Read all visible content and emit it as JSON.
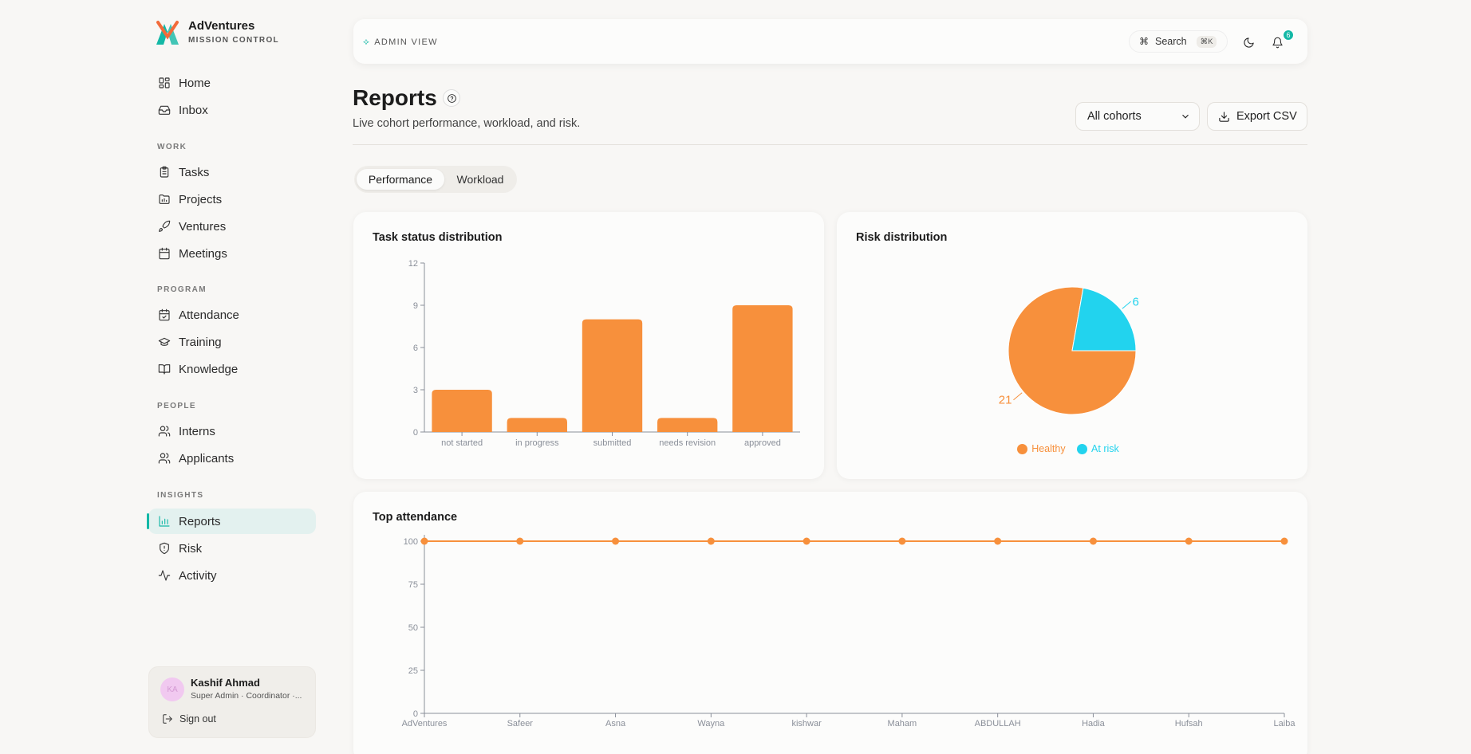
{
  "brand": {
    "name": "AdVentures",
    "subtitle": "MISSION CONTROL"
  },
  "sidebar": {
    "items_top": [
      {
        "label": "Home",
        "icon": "grid-icon"
      },
      {
        "label": "Inbox",
        "icon": "inbox-icon"
      }
    ],
    "sections": [
      {
        "label": "WORK",
        "items": [
          {
            "label": "Tasks",
            "icon": "clipboard-icon"
          },
          {
            "label": "Projects",
            "icon": "folder-icon"
          },
          {
            "label": "Ventures",
            "icon": "rocket-icon"
          },
          {
            "label": "Meetings",
            "icon": "calendar-icon"
          }
        ]
      },
      {
        "label": "PROGRAM",
        "items": [
          {
            "label": "Attendance",
            "icon": "calendar-check-icon"
          },
          {
            "label": "Training",
            "icon": "graduation-cap-icon"
          },
          {
            "label": "Knowledge",
            "icon": "book-icon"
          }
        ]
      },
      {
        "label": "PEOPLE",
        "items": [
          {
            "label": "Interns",
            "icon": "users-icon"
          },
          {
            "label": "Applicants",
            "icon": "users-icon"
          }
        ]
      },
      {
        "label": "INSIGHTS",
        "items": [
          {
            "label": "Reports",
            "icon": "bar-chart-icon",
            "active": true
          },
          {
            "label": "Risk",
            "icon": "shield-icon"
          },
          {
            "label": "Activity",
            "icon": "activity-icon"
          }
        ]
      }
    ]
  },
  "user": {
    "initials": "KA",
    "name": "Kashif Ahmad",
    "role": "Super Admin · Coordinator ·...",
    "signout": "Sign out"
  },
  "topbar": {
    "mode": "ADMIN VIEW",
    "search": "Search",
    "shortcut": "⌘K",
    "notifications": "6"
  },
  "header": {
    "title": "Reports",
    "subtitle": "Live cohort performance, workload, and risk.",
    "cohort": "All cohorts",
    "export": "Export CSV"
  },
  "tabs": [
    {
      "label": "Performance",
      "active": true
    },
    {
      "label": "Workload",
      "active": false
    }
  ],
  "colors": {
    "accent": "#14b8a6",
    "orange": "#f7903c",
    "cyan": "#22d3ee",
    "axis": "#8a8f99"
  },
  "chart_data": [
    {
      "type": "bar",
      "title": "Task status distribution",
      "categories": [
        "not started",
        "in progress",
        "submitted",
        "needs revision",
        "approved"
      ],
      "values": [
        3,
        1,
        8,
        1,
        9
      ],
      "ylim": [
        0,
        12
      ],
      "yticks": [
        0,
        3,
        6,
        9,
        12
      ],
      "color": "#f7903c"
    },
    {
      "type": "pie",
      "title": "Risk distribution",
      "labels": [
        "Healthy",
        "At risk"
      ],
      "values": [
        21,
        6
      ],
      "colors": [
        "#f7903c",
        "#22d3ee"
      ],
      "legend": "bottom"
    },
    {
      "type": "line",
      "title": "Top attendance",
      "x": [
        "AdVentures",
        "Safeer",
        "Asna",
        "Wayna",
        "kishwar",
        "Maham",
        "ABDULLAH",
        "Hadia",
        "Hufsah",
        "Laiba"
      ],
      "values": [
        100,
        100,
        100,
        100,
        100,
        100,
        100,
        100,
        100,
        100
      ],
      "ylim": [
        0,
        100
      ],
      "yticks": [
        0,
        25,
        50,
        75,
        100
      ],
      "color": "#f7903c"
    }
  ]
}
